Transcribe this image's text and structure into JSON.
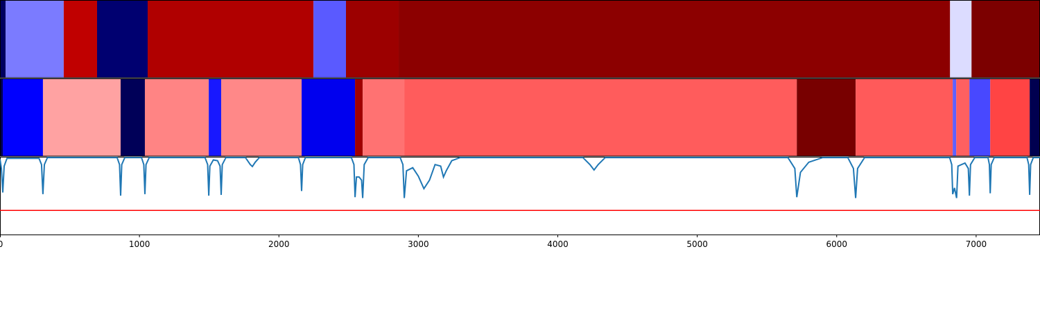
{
  "chart_data": {
    "type": "segmentation",
    "xlim": [
      0,
      7458
    ],
    "xticks": [
      0,
      1000,
      2000,
      3000,
      4000,
      5000,
      6000,
      7000
    ],
    "ylim": [
      0,
      1
    ],
    "rows": [
      {
        "segments": [
          {
            "start": 0,
            "end": 40,
            "color": "#000060"
          },
          {
            "start": 40,
            "end": 457,
            "color": "#7b7bff"
          },
          {
            "start": 457,
            "end": 696,
            "color": "#c00000"
          },
          {
            "start": 696,
            "end": 1059,
            "color": "#000070"
          },
          {
            "start": 1059,
            "end": 2248,
            "color": "#b00000"
          },
          {
            "start": 2248,
            "end": 2481,
            "color": "#5a5aff"
          },
          {
            "start": 2481,
            "end": 2859,
            "color": "#9c0000"
          },
          {
            "start": 2859,
            "end": 6813,
            "color": "#8c0000"
          },
          {
            "start": 6813,
            "end": 6967,
            "color": "#dcdcff"
          },
          {
            "start": 6967,
            "end": 7458,
            "color": "#7c0000"
          }
        ]
      },
      {
        "segments": [
          {
            "start": 0,
            "end": 20,
            "color": "#000050"
          },
          {
            "start": 20,
            "end": 308,
            "color": "#0000ff"
          },
          {
            "start": 308,
            "end": 865,
            "color": "#ffa2a2"
          },
          {
            "start": 865,
            "end": 1039,
            "color": "#000058"
          },
          {
            "start": 1039,
            "end": 1497,
            "color": "#ff8484"
          },
          {
            "start": 1497,
            "end": 1586,
            "color": "#1818ff"
          },
          {
            "start": 1586,
            "end": 2163,
            "color": "#ff8888"
          },
          {
            "start": 2163,
            "end": 2546,
            "color": "#0000ee"
          },
          {
            "start": 2546,
            "end": 2601,
            "color": "#a00000"
          },
          {
            "start": 2601,
            "end": 2899,
            "color": "#ff7272"
          },
          {
            "start": 2899,
            "end": 5714,
            "color": "#ff5c5c"
          },
          {
            "start": 5714,
            "end": 6136,
            "color": "#780000"
          },
          {
            "start": 6136,
            "end": 6832,
            "color": "#ff5a5a"
          },
          {
            "start": 6832,
            "end": 6857,
            "color": "#6060ff"
          },
          {
            "start": 6857,
            "end": 6952,
            "color": "#ff6060"
          },
          {
            "start": 6952,
            "end": 7101,
            "color": "#4848ff"
          },
          {
            "start": 7101,
            "end": 7384,
            "color": "#ff4444"
          },
          {
            "start": 7384,
            "end": 7458,
            "color": "#000050"
          }
        ]
      }
    ],
    "signal": {
      "color": "#1f77b4",
      "x": [
        0,
        10,
        20,
        30,
        50,
        280,
        298,
        308,
        318,
        340,
        840,
        857,
        865,
        873,
        895,
        1015,
        1031,
        1039,
        1047,
        1070,
        1470,
        1489,
        1497,
        1505,
        1530,
        1560,
        1578,
        1586,
        1594,
        1620,
        1760,
        1795,
        1810,
        1830,
        1860,
        2140,
        2155,
        2163,
        2171,
        2190,
        2520,
        2538,
        2546,
        2556,
        2575,
        2593,
        2601,
        2612,
        2640,
        2870,
        2889,
        2899,
        2915,
        2960,
        3000,
        3040,
        3080,
        3120,
        3160,
        3180,
        3200,
        3240,
        3300,
        4180,
        4230,
        4260,
        4290,
        4340,
        5650,
        5700,
        5714,
        5740,
        5800,
        5900,
        6080,
        6120,
        6136,
        6150,
        6200,
        6810,
        6825,
        6832,
        6845,
        6860,
        6870,
        6920,
        6944,
        6952,
        6960,
        6990,
        7085,
        7095,
        7101,
        7108,
        7130,
        7365,
        7377,
        7384,
        7391,
        7410,
        7458
      ],
      "values": [
        0.97,
        0.85,
        0.54,
        0.88,
        0.98,
        0.98,
        0.9,
        0.52,
        0.9,
        0.99,
        0.99,
        0.9,
        0.5,
        0.9,
        0.99,
        0.99,
        0.9,
        0.52,
        0.9,
        0.99,
        0.99,
        0.9,
        0.5,
        0.88,
        0.96,
        0.95,
        0.88,
        0.51,
        0.9,
        0.99,
        0.99,
        0.9,
        0.875,
        0.93,
        0.99,
        0.99,
        0.9,
        0.56,
        0.9,
        0.99,
        0.99,
        0.9,
        0.48,
        0.74,
        0.74,
        0.7,
        0.47,
        0.9,
        0.99,
        0.99,
        0.9,
        0.47,
        0.82,
        0.86,
        0.75,
        0.59,
        0.7,
        0.9,
        0.88,
        0.74,
        0.82,
        0.95,
        0.99,
        0.99,
        0.9,
        0.83,
        0.9,
        0.99,
        0.99,
        0.85,
        0.48,
        0.8,
        0.93,
        0.99,
        0.99,
        0.85,
        0.47,
        0.85,
        0.99,
        0.99,
        0.9,
        0.52,
        0.6,
        0.47,
        0.88,
        0.92,
        0.85,
        0.5,
        0.9,
        0.99,
        0.99,
        0.9,
        0.53,
        0.9,
        0.99,
        0.99,
        0.9,
        0.51,
        0.9,
        0.99,
        0.99
      ]
    },
    "threshold": {
      "value": 0.31,
      "color": "#ff0000"
    }
  }
}
